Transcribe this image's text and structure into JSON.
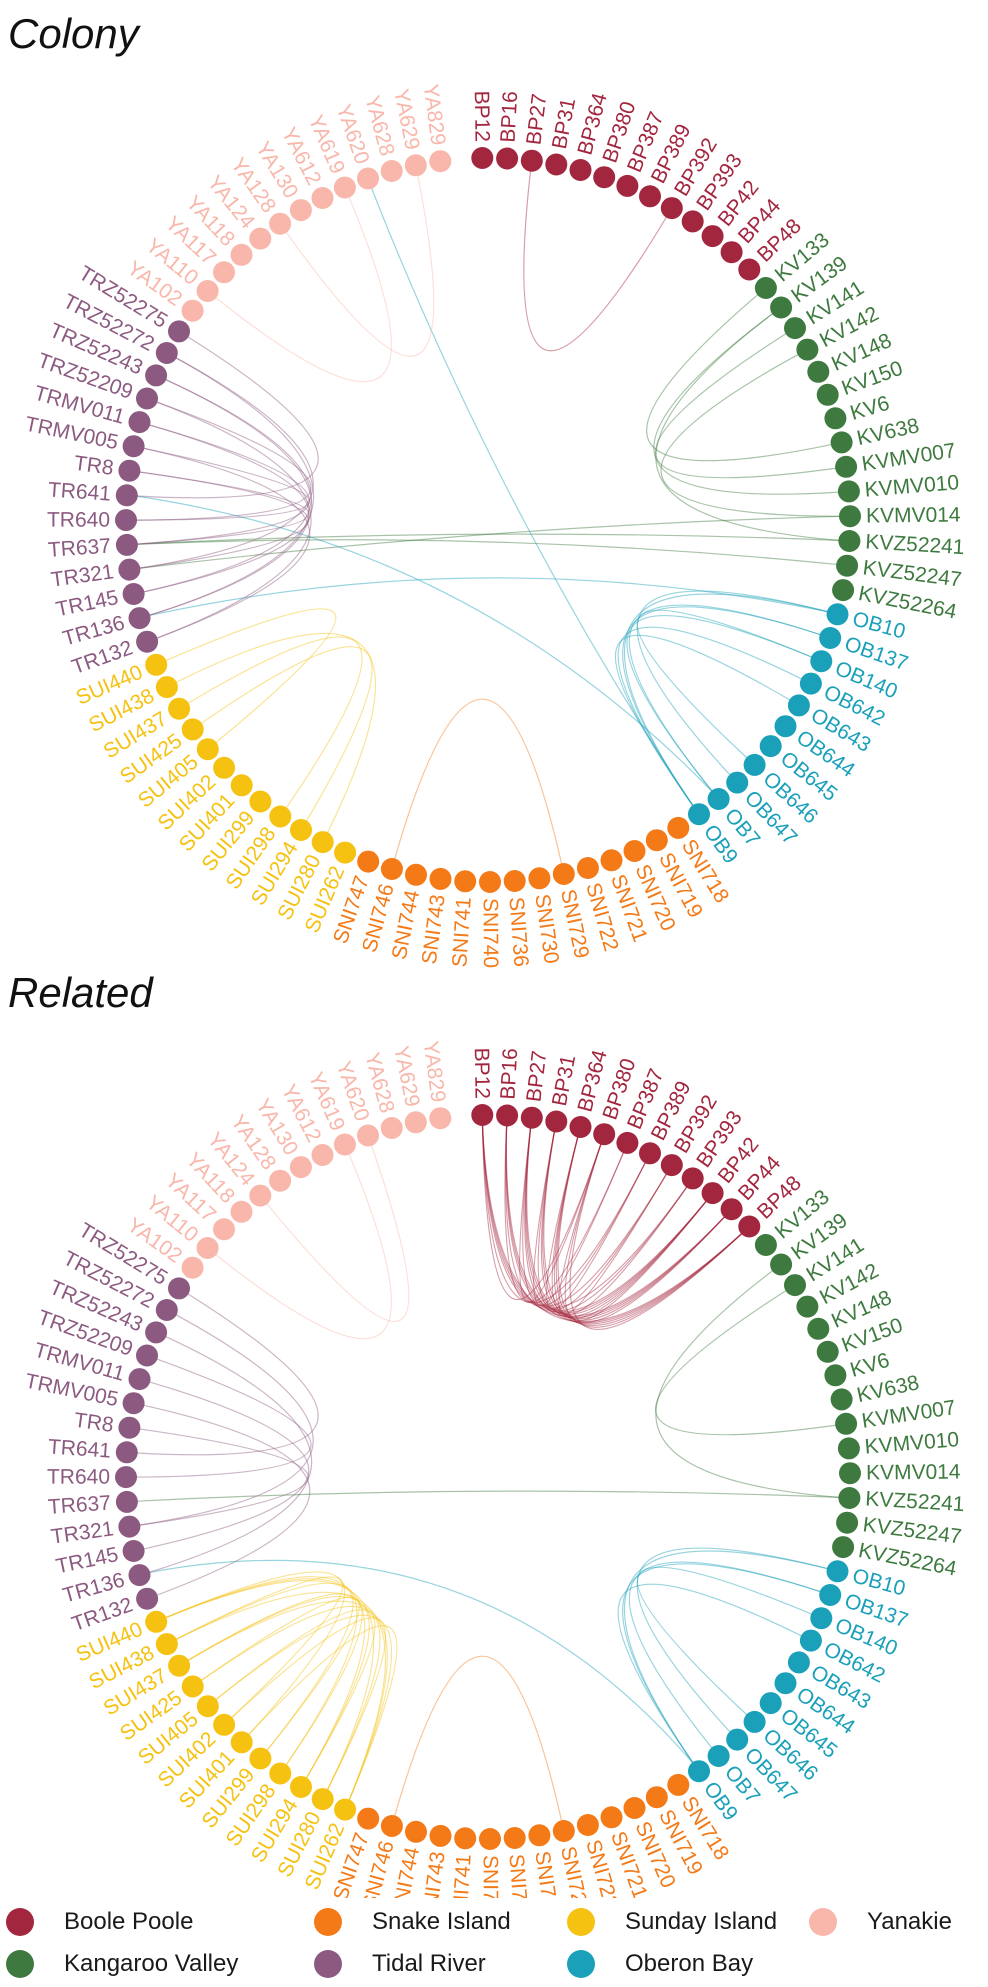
{
  "groups": {
    "BP": {
      "name": "Boole Poole",
      "color": "#a3263f"
    },
    "KV": {
      "name": "Kangaroo Valley",
      "color": "#3e7a3f"
    },
    "OB": {
      "name": "Oberon Bay",
      "color": "#1aa0b9"
    },
    "SNI": {
      "name": "Snake Island",
      "color": "#f47a18"
    },
    "SUI": {
      "name": "Sunday Island",
      "color": "#f5c212"
    },
    "TR": {
      "name": "Tidal River",
      "color": "#8c5a80"
    },
    "YA": {
      "name": "Yanakie",
      "color": "#f8b7aa"
    }
  },
  "nodes": [
    {
      "id": "BP12",
      "g": "BP"
    },
    {
      "id": "BP16",
      "g": "BP"
    },
    {
      "id": "BP27",
      "g": "BP"
    },
    {
      "id": "BP31",
      "g": "BP"
    },
    {
      "id": "BP364",
      "g": "BP"
    },
    {
      "id": "BP380",
      "g": "BP"
    },
    {
      "id": "BP387",
      "g": "BP"
    },
    {
      "id": "BP389",
      "g": "BP"
    },
    {
      "id": "BP392",
      "g": "BP"
    },
    {
      "id": "BP393",
      "g": "BP"
    },
    {
      "id": "BP42",
      "g": "BP"
    },
    {
      "id": "BP44",
      "g": "BP"
    },
    {
      "id": "BP48",
      "g": "BP"
    },
    {
      "id": "KV133",
      "g": "KV"
    },
    {
      "id": "KV139",
      "g": "KV"
    },
    {
      "id": "KV141",
      "g": "KV"
    },
    {
      "id": "KV142",
      "g": "KV"
    },
    {
      "id": "KV148",
      "g": "KV"
    },
    {
      "id": "KV150",
      "g": "KV"
    },
    {
      "id": "KV6",
      "g": "KV"
    },
    {
      "id": "KV638",
      "g": "KV"
    },
    {
      "id": "KVMV007",
      "g": "KV"
    },
    {
      "id": "KVMV010",
      "g": "KV"
    },
    {
      "id": "KVMV014",
      "g": "KV"
    },
    {
      "id": "KVZ52241",
      "g": "KV"
    },
    {
      "id": "KVZ52247",
      "g": "KV"
    },
    {
      "id": "KVZ52264",
      "g": "KV"
    },
    {
      "id": "OB10",
      "g": "OB"
    },
    {
      "id": "OB137",
      "g": "OB"
    },
    {
      "id": "OB140",
      "g": "OB"
    },
    {
      "id": "OB642",
      "g": "OB"
    },
    {
      "id": "OB643",
      "g": "OB"
    },
    {
      "id": "OB644",
      "g": "OB"
    },
    {
      "id": "OB645",
      "g": "OB"
    },
    {
      "id": "OB646",
      "g": "OB"
    },
    {
      "id": "OB647",
      "g": "OB"
    },
    {
      "id": "OB7",
      "g": "OB"
    },
    {
      "id": "OB9",
      "g": "OB"
    },
    {
      "id": "SNI718",
      "g": "SNI"
    },
    {
      "id": "SNI719",
      "g": "SNI"
    },
    {
      "id": "SNI720",
      "g": "SNI"
    },
    {
      "id": "SNI721",
      "g": "SNI"
    },
    {
      "id": "SNI722",
      "g": "SNI"
    },
    {
      "id": "SNI729",
      "g": "SNI"
    },
    {
      "id": "SNI730",
      "g": "SNI"
    },
    {
      "id": "SNI736",
      "g": "SNI"
    },
    {
      "id": "SNI740",
      "g": "SNI"
    },
    {
      "id": "SNI741",
      "g": "SNI"
    },
    {
      "id": "SNI743",
      "g": "SNI"
    },
    {
      "id": "SNI744",
      "g": "SNI"
    },
    {
      "id": "SNI746",
      "g": "SNI"
    },
    {
      "id": "SNI747",
      "g": "SNI"
    },
    {
      "id": "SUI262",
      "g": "SUI"
    },
    {
      "id": "SUI280",
      "g": "SUI"
    },
    {
      "id": "SUI294",
      "g": "SUI"
    },
    {
      "id": "SUI298",
      "g": "SUI"
    },
    {
      "id": "SUI299",
      "g": "SUI"
    },
    {
      "id": "SUI401",
      "g": "SUI"
    },
    {
      "id": "SUI402",
      "g": "SUI"
    },
    {
      "id": "SUI405",
      "g": "SUI"
    },
    {
      "id": "SUI425",
      "g": "SUI"
    },
    {
      "id": "SUI437",
      "g": "SUI"
    },
    {
      "id": "SUI438",
      "g": "SUI"
    },
    {
      "id": "SUI440",
      "g": "SUI"
    },
    {
      "id": "TR132",
      "g": "TR"
    },
    {
      "id": "TR136",
      "g": "TR"
    },
    {
      "id": "TR145",
      "g": "TR"
    },
    {
      "id": "TR321",
      "g": "TR"
    },
    {
      "id": "TR637",
      "g": "TR"
    },
    {
      "id": "TR640",
      "g": "TR"
    },
    {
      "id": "TR641",
      "g": "TR"
    },
    {
      "id": "TR8",
      "g": "TR"
    },
    {
      "id": "TRMV005",
      "g": "TR"
    },
    {
      "id": "TRMV011",
      "g": "TR"
    },
    {
      "id": "TRZ52209",
      "g": "TR"
    },
    {
      "id": "TRZ52243",
      "g": "TR"
    },
    {
      "id": "TRZ52272",
      "g": "TR"
    },
    {
      "id": "TRZ52275",
      "g": "TR"
    },
    {
      "id": "YA102",
      "g": "YA"
    },
    {
      "id": "YA110",
      "g": "YA"
    },
    {
      "id": "YA117",
      "g": "YA"
    },
    {
      "id": "YA118",
      "g": "YA"
    },
    {
      "id": "YA124",
      "g": "YA"
    },
    {
      "id": "YA128",
      "g": "YA"
    },
    {
      "id": "YA130",
      "g": "YA"
    },
    {
      "id": "YA612",
      "g": "YA"
    },
    {
      "id": "YA619",
      "g": "YA"
    },
    {
      "id": "YA620",
      "g": "YA"
    },
    {
      "id": "YA628",
      "g": "YA"
    },
    {
      "id": "YA629",
      "g": "YA"
    },
    {
      "id": "YA829",
      "g": "YA"
    }
  ],
  "panels": [
    {
      "title": "Colony",
      "links": [
        [
          "BP27",
          "BP392"
        ],
        [
          "KV139",
          "KVMV010"
        ],
        [
          "KV141",
          "KVMV007"
        ],
        [
          "KV142",
          "KVMV014"
        ],
        [
          "KV139",
          "KVZ52241"
        ],
        [
          "KV133",
          "KV638"
        ],
        [
          "TR637",
          "KVZ52247"
        ],
        [
          "TR637",
          "KVZ52241"
        ],
        [
          "TR321",
          "KVMV014"
        ],
        [
          "YA620",
          "OB9"
        ],
        [
          "TR641",
          "OB7"
        ],
        [
          "TR136",
          "OB10"
        ],
        [
          "OB10",
          "OB9"
        ],
        [
          "OB137",
          "OB7"
        ],
        [
          "OB140",
          "OB646"
        ],
        [
          "OB642",
          "OB9"
        ],
        [
          "OB10",
          "OB647"
        ],
        [
          "OB137",
          "OB9"
        ],
        [
          "OB140",
          "OB7"
        ],
        [
          "OB643",
          "OB9"
        ],
        [
          "TRZ52243",
          "TR136"
        ],
        [
          "TRZ52272",
          "TR321"
        ],
        [
          "TRZ52209",
          "TR640"
        ],
        [
          "TRMV011",
          "TR145"
        ],
        [
          "TRMV005",
          "TR132"
        ],
        [
          "TR8",
          "TR637"
        ],
        [
          "TRZ52275",
          "TR641"
        ],
        [
          "TRZ52243",
          "TR145"
        ],
        [
          "TRMV011",
          "TR637"
        ],
        [
          "TRZ52209",
          "TR132"
        ],
        [
          "TR8",
          "TR321"
        ],
        [
          "TRZ52272",
          "TR136"
        ],
        [
          "TRMV005",
          "TR640"
        ],
        [
          "SUI440",
          "SUI405"
        ],
        [
          "SUI438",
          "SUI280"
        ],
        [
          "SUI437",
          "SUI298"
        ],
        [
          "SUI425",
          "SUI294"
        ],
        [
          "SNI746",
          "SNI729"
        ],
        [
          "YA110",
          "YA619"
        ],
        [
          "YA128",
          "YA629"
        ]
      ]
    },
    {
      "title": "Related",
      "links": [
        [
          "BP12",
          "BP380"
        ],
        [
          "BP12",
          "BP389"
        ],
        [
          "BP12",
          "BP393"
        ],
        [
          "BP12",
          "BP44"
        ],
        [
          "BP12",
          "BP48"
        ],
        [
          "BP16",
          "BP387"
        ],
        [
          "BP16",
          "BP392"
        ],
        [
          "BP16",
          "BP42"
        ],
        [
          "BP16",
          "BP48"
        ],
        [
          "BP27",
          "BP380"
        ],
        [
          "BP27",
          "BP389"
        ],
        [
          "BP27",
          "BP393"
        ],
        [
          "BP27",
          "BP44"
        ],
        [
          "BP27",
          "BP48"
        ],
        [
          "BP31",
          "BP387"
        ],
        [
          "BP31",
          "BP392"
        ],
        [
          "BP31",
          "BP42"
        ],
        [
          "BP31",
          "BP48"
        ],
        [
          "BP364",
          "BP389"
        ],
        [
          "BP364",
          "BP393"
        ],
        [
          "BP364",
          "BP44"
        ],
        [
          "BP364",
          "BP48"
        ],
        [
          "BP380",
          "BP392"
        ],
        [
          "BP380",
          "BP42"
        ],
        [
          "BP380",
          "BP48"
        ],
        [
          "BP12",
          "BP42"
        ],
        [
          "BP16",
          "BP44"
        ],
        [
          "BP27",
          "BP42"
        ],
        [
          "BP31",
          "BP44"
        ],
        [
          "BP364",
          "BP42"
        ],
        [
          "KV141",
          "KVMV007"
        ],
        [
          "KV139",
          "KVZ52241"
        ],
        [
          "TR637",
          "KVZ52241"
        ],
        [
          "TR136",
          "OB9"
        ],
        [
          "OB10",
          "OB9"
        ],
        [
          "OB137",
          "OB7"
        ],
        [
          "OB140",
          "OB646"
        ],
        [
          "OB642",
          "OB9"
        ],
        [
          "OB10",
          "OB647"
        ],
        [
          "OB137",
          "OB9"
        ],
        [
          "TRZ52243",
          "TR136"
        ],
        [
          "TRZ52272",
          "TR321"
        ],
        [
          "TRZ52209",
          "TR640"
        ],
        [
          "TRMV011",
          "TR145"
        ],
        [
          "TRMV005",
          "TR132"
        ],
        [
          "TRZ52275",
          "TR641"
        ],
        [
          "TR8",
          "TR321"
        ],
        [
          "SUI440",
          "SUI298"
        ],
        [
          "SUI440",
          "SUI294"
        ],
        [
          "SUI440",
          "SUI280"
        ],
        [
          "SUI438",
          "SUI299"
        ],
        [
          "SUI438",
          "SUI262"
        ],
        [
          "SUI437",
          "SUI294"
        ],
        [
          "SUI437",
          "SUI298"
        ],
        [
          "SUI425",
          "SUI280"
        ],
        [
          "SUI425",
          "SUI299"
        ],
        [
          "SUI405",
          "SUI262"
        ],
        [
          "SUI405",
          "SUI294"
        ],
        [
          "SUI402",
          "SUI280"
        ],
        [
          "SUI401",
          "SUI262"
        ],
        [
          "SUI440",
          "SUI401"
        ],
        [
          "SUI438",
          "SUI402"
        ],
        [
          "SUI437",
          "SUI262"
        ],
        [
          "SNI746",
          "SNI729"
        ],
        [
          "YA110",
          "YA619"
        ],
        [
          "YA124",
          "YA620"
        ]
      ]
    }
  ],
  "legend": [
    "BP",
    "SNI",
    "SUI",
    "YA",
    "KV",
    "TR",
    "OB"
  ]
}
